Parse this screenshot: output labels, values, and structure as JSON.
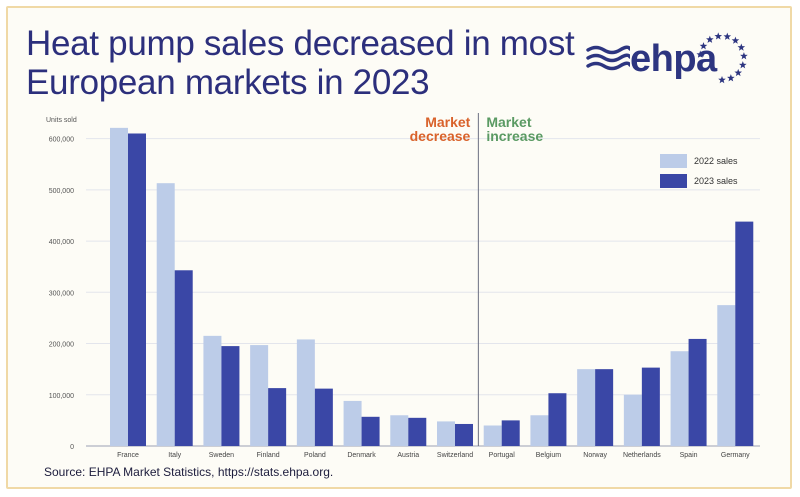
{
  "title": "Heat pump sales decreased in most European markets in 2023",
  "logo": {
    "text": "ehpa",
    "icon": "eu-stars-waves-logo"
  },
  "source": "Source: EHPA Market Statistics, https://stats.ehpa.org.",
  "colors": {
    "series_2022": "#bccce8",
    "series_2023": "#3a47a6",
    "title": "#2c2f7c",
    "market_decrease": "#d9622b",
    "market_increase": "#5a9a63"
  },
  "chart_data": {
    "type": "bar",
    "ylabel": "Units sold",
    "ylim": [
      0,
      650000
    ],
    "yticks": [
      0,
      100000,
      200000,
      300000,
      400000,
      500000,
      600000
    ],
    "ytick_labels": [
      "0",
      "100,000",
      "200,000",
      "300,000",
      "400,000",
      "500,000",
      "600,000"
    ],
    "grid": true,
    "legend_position": "top-right",
    "categories": [
      "France",
      "Italy",
      "Sweden",
      "Finland",
      "Poland",
      "Denmark",
      "Austria",
      "Switzerland",
      "Portugal",
      "Belgium",
      "Norway",
      "Netherlands",
      "Spain",
      "Germany"
    ],
    "series": [
      {
        "name": "2022 sales",
        "values": [
          621000,
          513000,
          215000,
          197000,
          208000,
          88000,
          60000,
          48000,
          40000,
          60000,
          150000,
          100000,
          185000,
          275000
        ]
      },
      {
        "name": "2023 sales",
        "values": [
          610000,
          343000,
          195000,
          113000,
          112000,
          57000,
          55000,
          43000,
          50000,
          103000,
          150000,
          153000,
          209000,
          438000
        ]
      }
    ],
    "annotations": [
      {
        "text_line1": "Market",
        "text_line2": "decrease",
        "color": "#d9622b",
        "side": "left"
      },
      {
        "text_line1": "Market",
        "text_line2": "increase",
        "color": "#5a9a63",
        "side": "right"
      }
    ],
    "divider_after_category": "Switzerland"
  }
}
